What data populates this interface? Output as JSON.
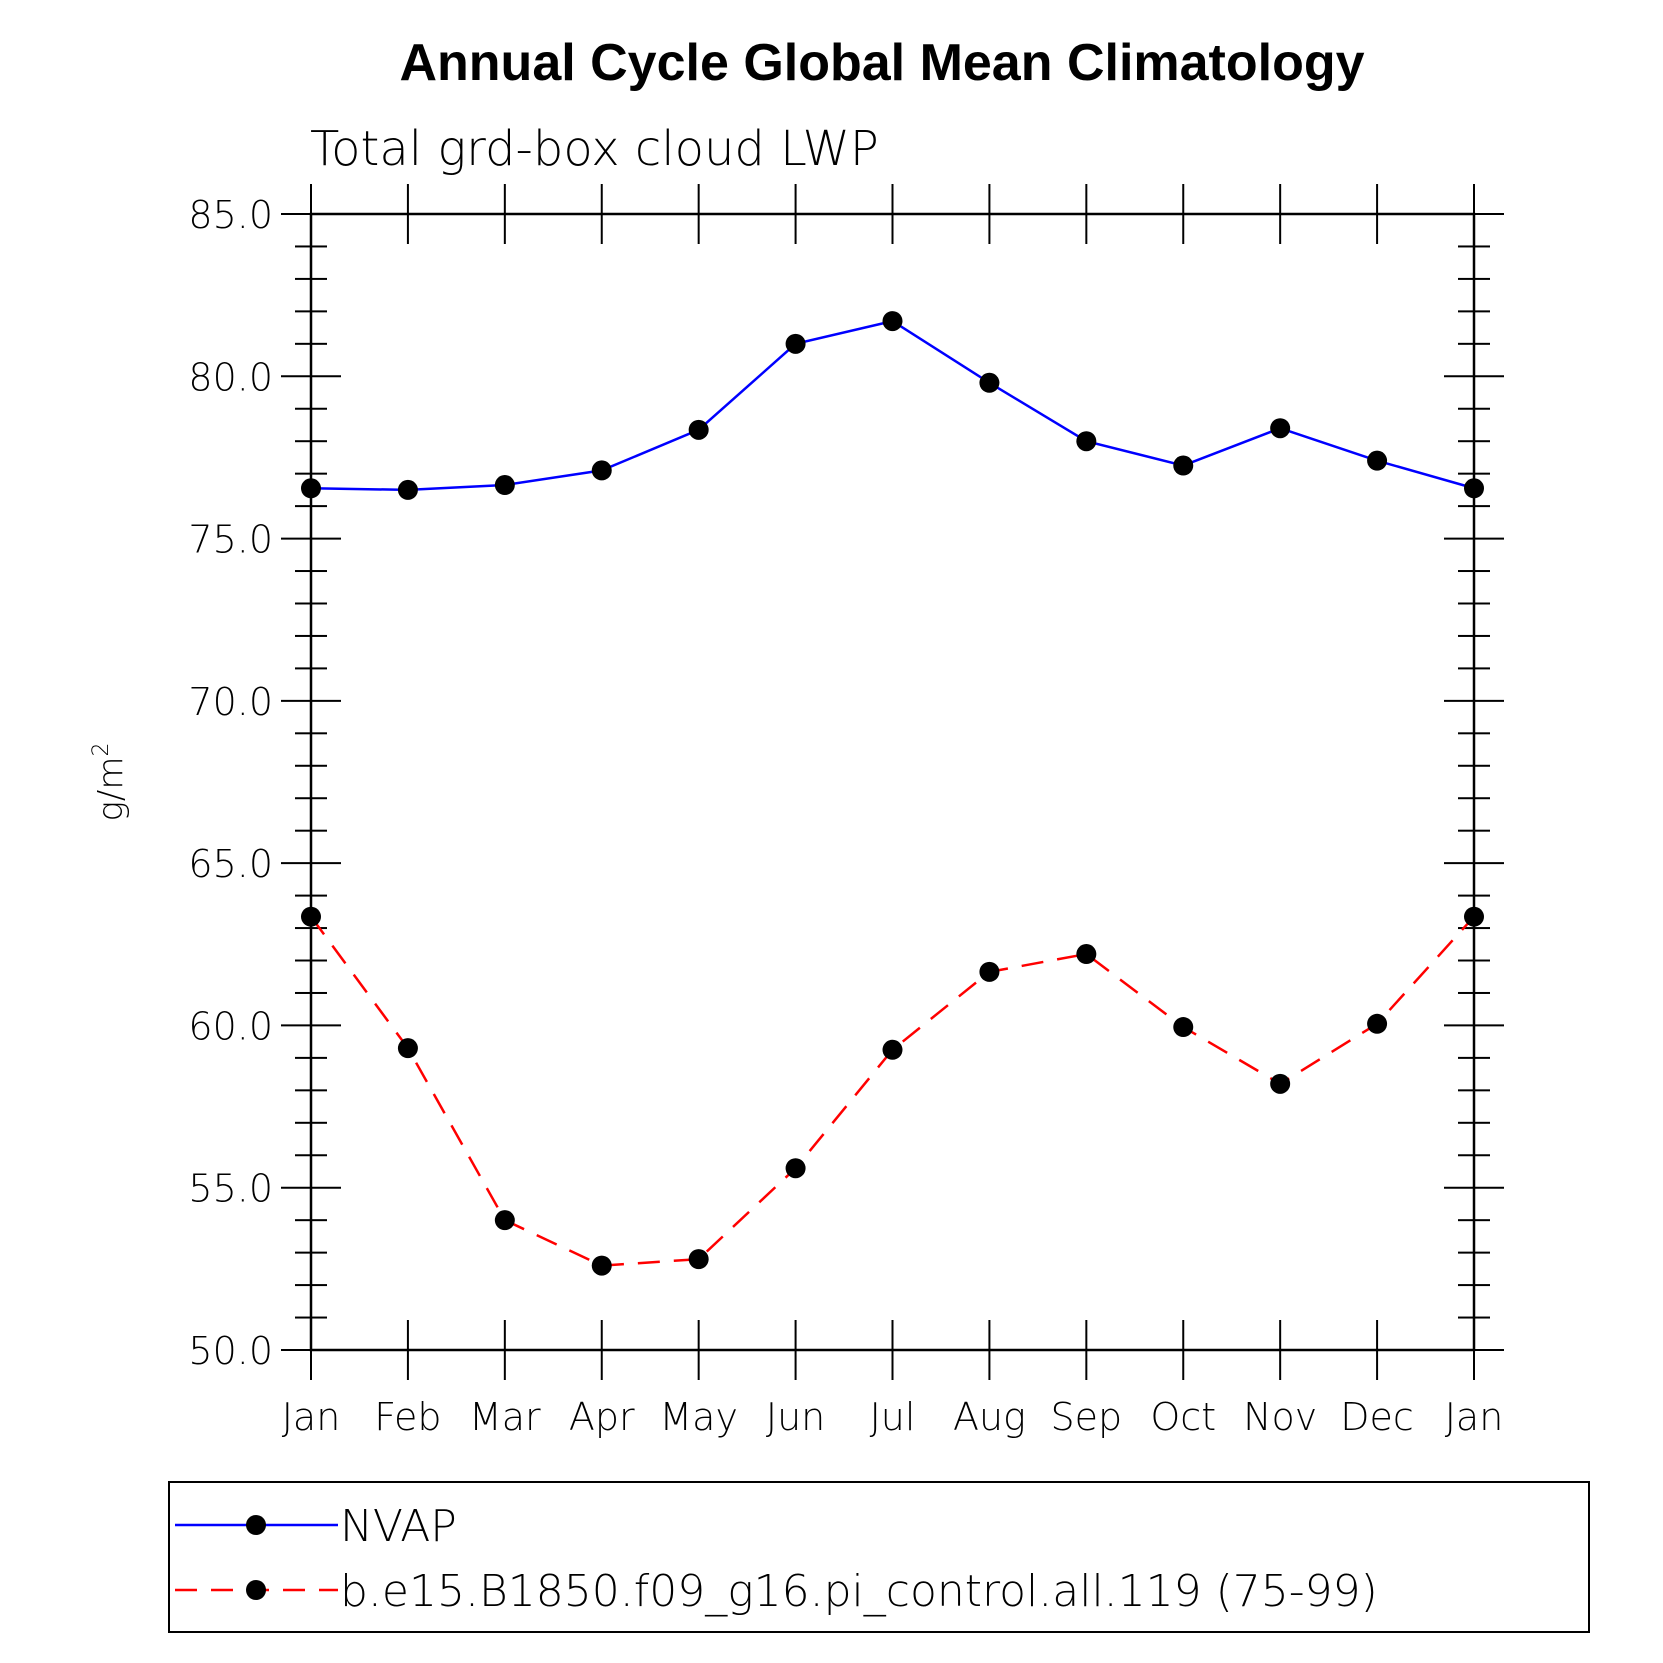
{
  "chart_data": {
    "type": "line",
    "title": "Annual Cycle Global Mean Climatology",
    "subtitle": "Total grd-box cloud LWP",
    "ylabel": "g/m",
    "ylabel_superscript": "2",
    "xlabel": "",
    "categories": [
      "Jan",
      "Feb",
      "Mar",
      "Apr",
      "May",
      "Jun",
      "Jul",
      "Aug",
      "Sep",
      "Oct",
      "Nov",
      "Dec",
      "Jan"
    ],
    "ylim": [
      50.0,
      85.0
    ],
    "yticks": [
      "50.0",
      "55.0",
      "60.0",
      "65.0",
      "70.0",
      "75.0",
      "80.0",
      "85.0"
    ],
    "series": [
      {
        "name": "NVAP",
        "color": "#0000ff",
        "dash": "solid",
        "values": [
          76.55,
          76.5,
          76.65,
          77.1,
          78.35,
          81.0,
          81.7,
          79.8,
          78.0,
          77.25,
          78.4,
          77.4,
          76.55
        ]
      },
      {
        "name": "b.e15.B1850.f09_g16.pi_control.all.119 (75-99)",
        "color": "#ff0000",
        "dash": "dashed",
        "values": [
          63.35,
          59.3,
          54.0,
          52.6,
          52.8,
          55.6,
          59.25,
          61.65,
          62.2,
          59.95,
          58.2,
          60.05,
          63.35
        ]
      }
    ],
    "legend_position": "bottom",
    "marker_color": "#000000"
  }
}
